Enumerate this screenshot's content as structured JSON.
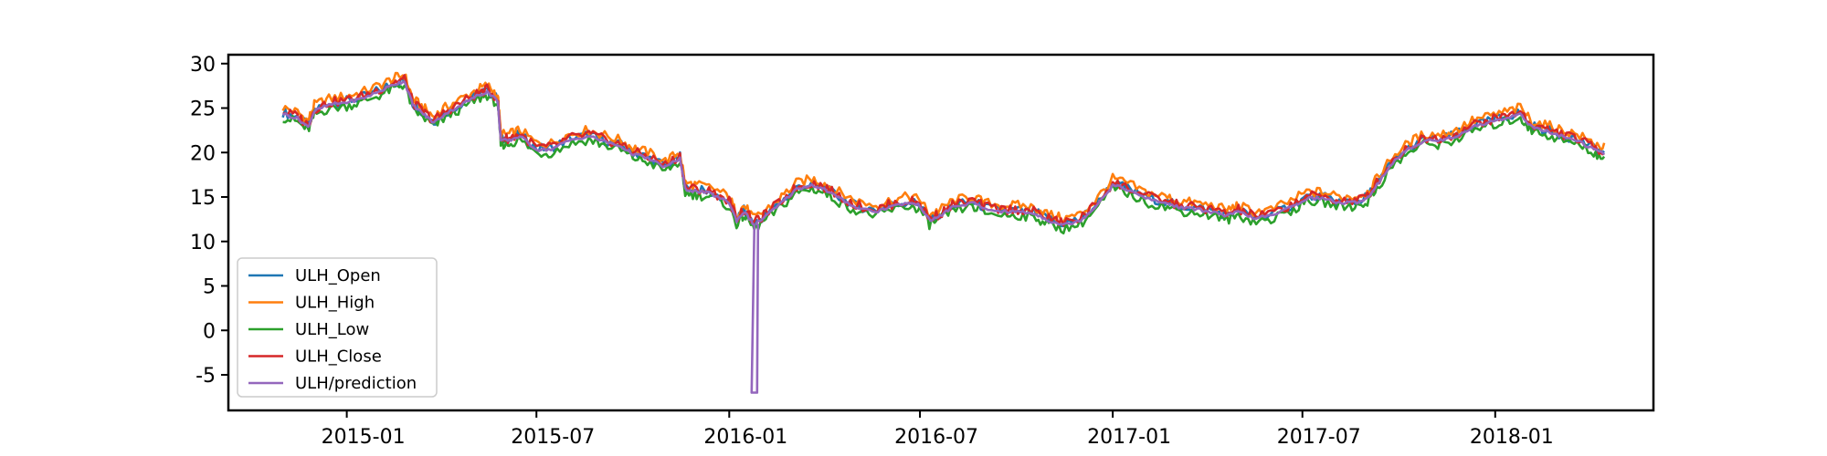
{
  "chart_data": {
    "type": "line",
    "title": "",
    "xlabel": "",
    "ylabel": "",
    "xlim": [
      "2014-09-10",
      "2018-06-01"
    ],
    "ylim": [
      -9,
      31
    ],
    "grid": false,
    "legend_position": "lower-left",
    "x_ticks": [
      "2015-01",
      "2015-07",
      "2016-01",
      "2016-07",
      "2017-01",
      "2017-07",
      "2018-01"
    ],
    "y_ticks": [
      30,
      25,
      20,
      15,
      10,
      5,
      0,
      -5
    ],
    "series": [
      {
        "name": "ULH_Open",
        "color": "#1f77b4",
        "offset": 0.0
      },
      {
        "name": "ULH_High",
        "color": "#ff7f0e",
        "offset": 0.55
      },
      {
        "name": "ULH_Low",
        "color": "#2ca02c",
        "offset": -0.55
      },
      {
        "name": "ULH_Close",
        "color": "#d62728",
        "offset": 0.1
      },
      {
        "name": "ULH/prediction",
        "color": "#9467bd",
        "offset": -0.15,
        "spike": {
          "date": "2016-01-25",
          "value": -7
        }
      }
    ],
    "base_points": [
      [
        "2014-11-01",
        24.5
      ],
      [
        "2014-11-15",
        24.0
      ],
      [
        "2014-11-25",
        23.0
      ],
      [
        "2014-12-01",
        24.8
      ],
      [
        "2014-12-15",
        25.5
      ],
      [
        "2015-01-01",
        25.8
      ],
      [
        "2015-01-15",
        26.2
      ],
      [
        "2015-02-01",
        27.0
      ],
      [
        "2015-02-15",
        27.8
      ],
      [
        "2015-02-25",
        28.2
      ],
      [
        "2015-03-05",
        25.5
      ],
      [
        "2015-03-15",
        24.5
      ],
      [
        "2015-03-25",
        23.5
      ],
      [
        "2015-04-05",
        24.5
      ],
      [
        "2015-04-20",
        25.5
      ],
      [
        "2015-05-05",
        26.5
      ],
      [
        "2015-05-15",
        27.0
      ],
      [
        "2015-05-25",
        26.0
      ],
      [
        "2015-05-28",
        21.5
      ],
      [
        "2015-06-05",
        21.5
      ],
      [
        "2015-06-15",
        22.0
      ],
      [
        "2015-07-01",
        20.5
      ],
      [
        "2015-07-15",
        20.5
      ],
      [
        "2015-08-01",
        21.5
      ],
      [
        "2015-08-20",
        22.0
      ],
      [
        "2015-09-01",
        21.5
      ],
      [
        "2015-09-20",
        20.8
      ],
      [
        "2015-10-01",
        20.0
      ],
      [
        "2015-10-15",
        19.5
      ],
      [
        "2015-11-01",
        18.5
      ],
      [
        "2015-11-15",
        19.5
      ],
      [
        "2015-11-20",
        16.0
      ],
      [
        "2015-12-01",
        15.8
      ],
      [
        "2015-12-15",
        15.5
      ],
      [
        "2016-01-01",
        14.5
      ],
      [
        "2016-01-08",
        12.5
      ],
      [
        "2016-01-15",
        13.5
      ],
      [
        "2016-01-25",
        12.0
      ],
      [
        "2016-02-05",
        13.0
      ],
      [
        "2016-02-20",
        14.5
      ],
      [
        "2016-03-05",
        16.0
      ],
      [
        "2016-03-20",
        16.5
      ],
      [
        "2016-04-01",
        16.0
      ],
      [
        "2016-04-15",
        15.0
      ],
      [
        "2016-05-01",
        14.0
      ],
      [
        "2016-05-20",
        13.5
      ],
      [
        "2016-06-01",
        14.0
      ],
      [
        "2016-06-20",
        14.5
      ],
      [
        "2016-07-01",
        14.2
      ],
      [
        "2016-07-10",
        12.5
      ],
      [
        "2016-07-20",
        13.0
      ],
      [
        "2016-08-01",
        14.0
      ],
      [
        "2016-08-20",
        14.5
      ],
      [
        "2016-09-01",
        13.8
      ],
      [
        "2016-09-20",
        13.5
      ],
      [
        "2016-10-05",
        13.5
      ],
      [
        "2016-10-20",
        13.2
      ],
      [
        "2016-11-01",
        12.5
      ],
      [
        "2016-11-15",
        12.0
      ],
      [
        "2016-12-01",
        12.5
      ],
      [
        "2016-12-15",
        14.0
      ],
      [
        "2017-01-01",
        16.5
      ],
      [
        "2017-01-15",
        16.0
      ],
      [
        "2017-02-01",
        15.0
      ],
      [
        "2017-02-20",
        14.5
      ],
      [
        "2017-03-05",
        14.0
      ],
      [
        "2017-03-20",
        13.8
      ],
      [
        "2017-04-05",
        13.5
      ],
      [
        "2017-04-20",
        13.0
      ],
      [
        "2017-05-01",
        13.5
      ],
      [
        "2017-05-15",
        12.8
      ],
      [
        "2017-06-01",
        13.0
      ],
      [
        "2017-06-20",
        14.0
      ],
      [
        "2017-07-05",
        15.0
      ],
      [
        "2017-07-20",
        15.0
      ],
      [
        "2017-08-05",
        14.5
      ],
      [
        "2017-08-20",
        14.5
      ],
      [
        "2017-09-01",
        15.0
      ],
      [
        "2017-09-10",
        16.5
      ],
      [
        "2017-09-25",
        19.0
      ],
      [
        "2017-10-10",
        20.5
      ],
      [
        "2017-10-25",
        21.5
      ],
      [
        "2017-11-10",
        21.5
      ],
      [
        "2017-11-25",
        22.0
      ],
      [
        "2017-12-10",
        23.0
      ],
      [
        "2017-12-25",
        23.5
      ],
      [
        "2018-01-10",
        24.0
      ],
      [
        "2018-01-25",
        24.5
      ],
      [
        "2018-02-05",
        23.0
      ],
      [
        "2018-02-20",
        22.5
      ],
      [
        "2018-03-05",
        22.0
      ],
      [
        "2018-03-20",
        21.5
      ],
      [
        "2018-04-05",
        20.5
      ],
      [
        "2018-04-15",
        20.0
      ]
    ]
  }
}
